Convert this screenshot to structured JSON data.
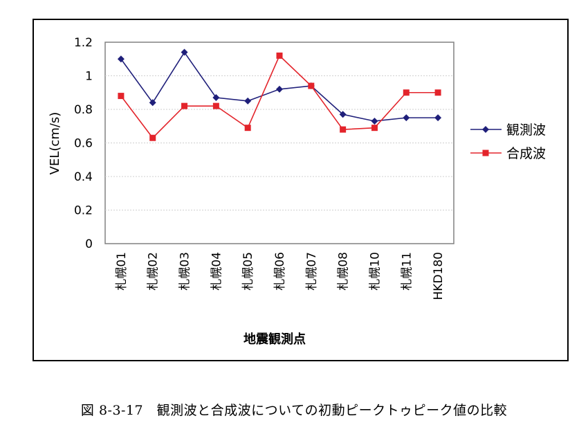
{
  "chart_data": {
    "type": "line",
    "categories": [
      "札幌01",
      "札幌02",
      "札幌03",
      "札幌04",
      "札幌05",
      "札幌06",
      "札幌07",
      "札幌08",
      "札幌10",
      "札幌11",
      "HKD180"
    ],
    "series": [
      {
        "name": "観測波",
        "color": "#1f1f7a",
        "marker": "diamond",
        "values": [
          1.1,
          0.84,
          1.14,
          0.87,
          0.85,
          0.92,
          0.94,
          0.77,
          0.73,
          0.75,
          0.75
        ]
      },
      {
        "name": "合成波",
        "color": "#e3242b",
        "marker": "square",
        "values": [
          0.88,
          0.63,
          0.82,
          0.82,
          0.69,
          1.12,
          0.94,
          0.68,
          0.69,
          0.9,
          0.9
        ]
      }
    ],
    "ylabel": "VEL(cm/s)",
    "xlabel": "地震観測点",
    "ylim": [
      0,
      1.2
    ],
    "yticks": [
      "0",
      "0.2",
      "0.4",
      "0.6",
      "0.8",
      "1",
      "1.2"
    ],
    "grid": true,
    "legend_position": "right"
  },
  "caption": "図 8-3-17　観測波と合成波についての初動ピークトゥピーク値の比較"
}
